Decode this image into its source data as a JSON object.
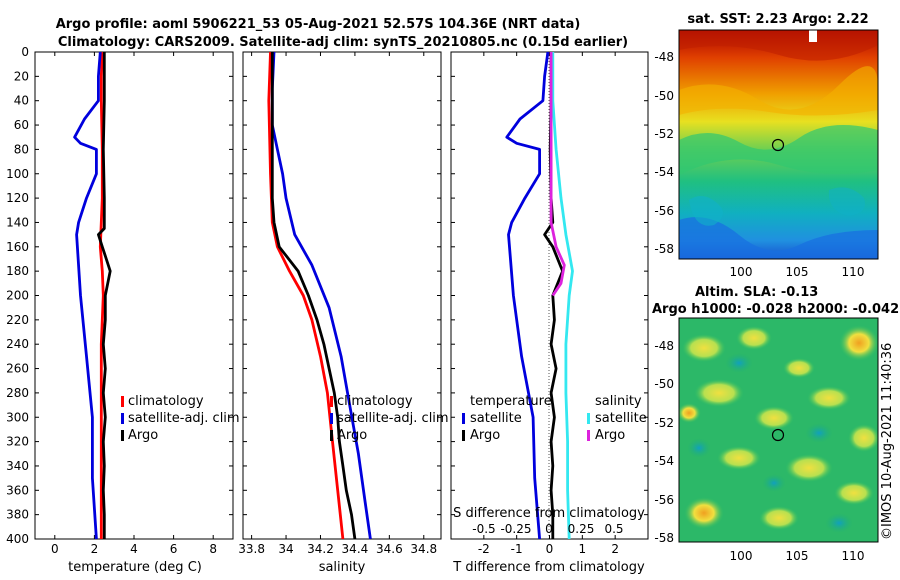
{
  "title": {
    "line1": "Argo profile: aoml 5906221_53 05-Aug-2021 52.57S 104.36E (NRT data)",
    "line2": "Climatology: CARS2009. Satellite-adj clim: synTS_20210805.nc (0.15d earlier)"
  },
  "credit": "©IMOS 10-Aug-2021 11:40:36",
  "colors": {
    "clim": "#ff0000",
    "sat": "#0000dd",
    "argo": "#000000",
    "sal_sat": "#33e8f0",
    "sal_argo": "#dd22dd"
  },
  "chart_data": [
    {
      "type": "line",
      "xlabel": "temperature (deg C)",
      "xlim": [
        -1,
        9
      ],
      "xticks": [
        0,
        2,
        4,
        6,
        8
      ],
      "ylim": [
        0,
        400
      ],
      "yticks": [
        0,
        20,
        40,
        60,
        80,
        100,
        120,
        140,
        160,
        180,
        200,
        220,
        240,
        260,
        280,
        300,
        320,
        340,
        360,
        380,
        400
      ],
      "legend": [
        "climatology",
        "satellite-adj. clim",
        "Argo"
      ],
      "series": [
        {
          "name": "climatology",
          "points": [
            [
              2.4,
              0
            ],
            [
              2.35,
              20
            ],
            [
              2.35,
              40
            ],
            [
              2.4,
              80
            ],
            [
              2.4,
              120
            ],
            [
              2.35,
              140
            ],
            [
              2.3,
              160
            ],
            [
              2.4,
              180
            ],
            [
              2.45,
              200
            ],
            [
              2.35,
              240
            ],
            [
              2.35,
              280
            ],
            [
              2.35,
              320
            ],
            [
              2.35,
              360
            ],
            [
              2.35,
              400
            ]
          ]
        },
        {
          "name": "satellite-adj. clim",
          "points": [
            [
              2.3,
              0
            ],
            [
              2.2,
              20
            ],
            [
              2.2,
              40
            ],
            [
              1.5,
              55
            ],
            [
              1.0,
              70
            ],
            [
              1.3,
              75
            ],
            [
              2.1,
              80
            ],
            [
              2.1,
              100
            ],
            [
              1.6,
              120
            ],
            [
              1.2,
              140
            ],
            [
              1.1,
              150
            ],
            [
              1.3,
              200
            ],
            [
              1.6,
              250
            ],
            [
              1.9,
              300
            ],
            [
              1.9,
              350
            ],
            [
              2.1,
              400
            ]
          ]
        },
        {
          "name": "Argo",
          "points": [
            [
              2.5,
              0
            ],
            [
              2.5,
              40
            ],
            [
              2.45,
              80
            ],
            [
              2.5,
              120
            ],
            [
              2.5,
              145
            ],
            [
              2.2,
              150
            ],
            [
              2.4,
              160
            ],
            [
              2.6,
              170
            ],
            [
              2.8,
              180
            ],
            [
              2.55,
              200
            ],
            [
              2.55,
              220
            ],
            [
              2.45,
              240
            ],
            [
              2.55,
              260
            ],
            [
              2.45,
              280
            ],
            [
              2.55,
              300
            ],
            [
              2.45,
              320
            ],
            [
              2.5,
              340
            ],
            [
              2.45,
              360
            ],
            [
              2.5,
              380
            ],
            [
              2.5,
              400
            ]
          ]
        }
      ]
    },
    {
      "type": "line",
      "xlabel": "salinity",
      "xlim": [
        33.75,
        34.9
      ],
      "xticks": [
        33.8,
        34,
        34.2,
        34.4,
        34.6,
        34.8
      ],
      "xtick_labels": [
        "33.8",
        "34",
        "34.2",
        "34.4",
        "34.6",
        "34.8"
      ],
      "ylim": [
        0,
        400
      ],
      "legend": [
        "climatology",
        "satellite-adj. clim",
        "Argo"
      ],
      "series": [
        {
          "name": "climatology",
          "points": [
            [
              33.91,
              0
            ],
            [
              33.9,
              40
            ],
            [
              33.91,
              100
            ],
            [
              33.92,
              140
            ],
            [
              33.95,
              160
            ],
            [
              34.02,
              180
            ],
            [
              34.1,
              200
            ],
            [
              34.15,
              220
            ],
            [
              34.2,
              250
            ],
            [
              34.24,
              280
            ],
            [
              34.27,
              320
            ],
            [
              34.3,
              360
            ],
            [
              34.33,
              400
            ]
          ]
        },
        {
          "name": "satellite-adj. clim",
          "points": [
            [
              33.93,
              0
            ],
            [
              33.92,
              30
            ],
            [
              33.92,
              60
            ],
            [
              33.95,
              80
            ],
            [
              33.98,
              100
            ],
            [
              34.0,
              120
            ],
            [
              34.05,
              150
            ],
            [
              34.15,
              175
            ],
            [
              34.25,
              210
            ],
            [
              34.32,
              250
            ],
            [
              34.37,
              290
            ],
            [
              34.42,
              330
            ],
            [
              34.46,
              370
            ],
            [
              34.49,
              400
            ]
          ]
        },
        {
          "name": "Argo",
          "points": [
            [
              33.92,
              0
            ],
            [
              33.92,
              40
            ],
            [
              33.92,
              80
            ],
            [
              33.92,
              120
            ],
            [
              33.93,
              140
            ],
            [
              33.96,
              160
            ],
            [
              34.07,
              180
            ],
            [
              34.13,
              200
            ],
            [
              34.18,
              220
            ],
            [
              34.22,
              240
            ],
            [
              34.25,
              260
            ],
            [
              34.28,
              280
            ],
            [
              34.3,
              300
            ],
            [
              34.31,
              320
            ],
            [
              34.33,
              340
            ],
            [
              34.35,
              360
            ],
            [
              34.38,
              380
            ],
            [
              34.4,
              400
            ]
          ]
        }
      ]
    },
    {
      "type": "line",
      "xlabel": "T difference from climatology",
      "xlim": [
        -3,
        3
      ],
      "xticks": [
        -2,
        -1,
        0,
        1,
        2
      ],
      "ylim": [
        0,
        400
      ],
      "top_axis_label": "S difference from climatology",
      "top_ticks": [
        "-0.5",
        "-0.25",
        "0",
        "0.25",
        "0.5"
      ],
      "legend_left": {
        "title": "temperature",
        "items": [
          "satellite",
          "Argo"
        ]
      },
      "legend_right": {
        "title": "salinity",
        "items": [
          "satellite",
          "Argo"
        ]
      },
      "series": [
        {
          "name": "temperature satellite",
          "points": [
            [
              -0.05,
              0
            ],
            [
              -0.15,
              20
            ],
            [
              -0.2,
              40
            ],
            [
              -0.9,
              55
            ],
            [
              -1.3,
              70
            ],
            [
              -1.0,
              75
            ],
            [
              -0.3,
              80
            ],
            [
              -0.3,
              100
            ],
            [
              -0.75,
              120
            ],
            [
              -1.15,
              140
            ],
            [
              -1.25,
              150
            ],
            [
              -1.1,
              200
            ],
            [
              -0.85,
              250
            ],
            [
              -0.5,
              300
            ],
            [
              -0.45,
              350
            ],
            [
              -0.3,
              400
            ]
          ]
        },
        {
          "name": "temperature Argo",
          "points": [
            [
              0.05,
              0
            ],
            [
              0.05,
              40
            ],
            [
              0.02,
              80
            ],
            [
              0.05,
              120
            ],
            [
              0.1,
              140
            ],
            [
              -0.15,
              150
            ],
            [
              0.1,
              160
            ],
            [
              0.25,
              170
            ],
            [
              0.4,
              180
            ],
            [
              0.1,
              200
            ],
            [
              0.15,
              220
            ],
            [
              0.05,
              240
            ],
            [
              0.2,
              260
            ],
            [
              0.05,
              280
            ],
            [
              0.15,
              300
            ],
            [
              0.05,
              320
            ],
            [
              0.1,
              340
            ],
            [
              0.05,
              360
            ],
            [
              0.1,
              380
            ],
            [
              0.1,
              400
            ]
          ]
        },
        {
          "name": "salinity satellite",
          "points": [
            [
              0.1,
              0
            ],
            [
              0.1,
              40
            ],
            [
              0.2,
              80
            ],
            [
              0.35,
              120
            ],
            [
              0.5,
              150
            ],
            [
              0.7,
              180
            ],
            [
              0.6,
              200
            ],
            [
              0.5,
              240
            ],
            [
              0.5,
              280
            ],
            [
              0.55,
              320
            ],
            [
              0.55,
              360
            ],
            [
              0.6,
              400
            ]
          ]
        },
        {
          "name": "salinity Argo",
          "points": [
            [
              0.05,
              0
            ],
            [
              0.05,
              40
            ],
            [
              0.05,
              80
            ],
            [
              0.05,
              120
            ],
            [
              0.05,
              140
            ],
            [
              0.2,
              160
            ],
            [
              0.45,
              175
            ],
            [
              0.35,
              190
            ],
            [
              0.1,
              200
            ]
          ]
        }
      ]
    },
    {
      "type": "heatmap",
      "title": "sat. SST: 2.23 Argo: 2.22",
      "xticks": [
        "100",
        "105",
        "110"
      ],
      "yticks": [
        "-48",
        "-50",
        "-52",
        "-54",
        "-56",
        "-58"
      ],
      "marker": {
        "lon": 104.36,
        "lat": -52.57
      }
    },
    {
      "type": "heatmap",
      "title1": "Altim. SLA: -0.13",
      "title2": "Argo h1000: -0.028 h2000: -0.042",
      "xticks": [
        "100",
        "105",
        "110"
      ],
      "yticks": [
        "-48",
        "-50",
        "-52",
        "-54",
        "-56",
        "-58"
      ],
      "marker": {
        "lon": 104.36,
        "lat": -52.57
      }
    }
  ]
}
